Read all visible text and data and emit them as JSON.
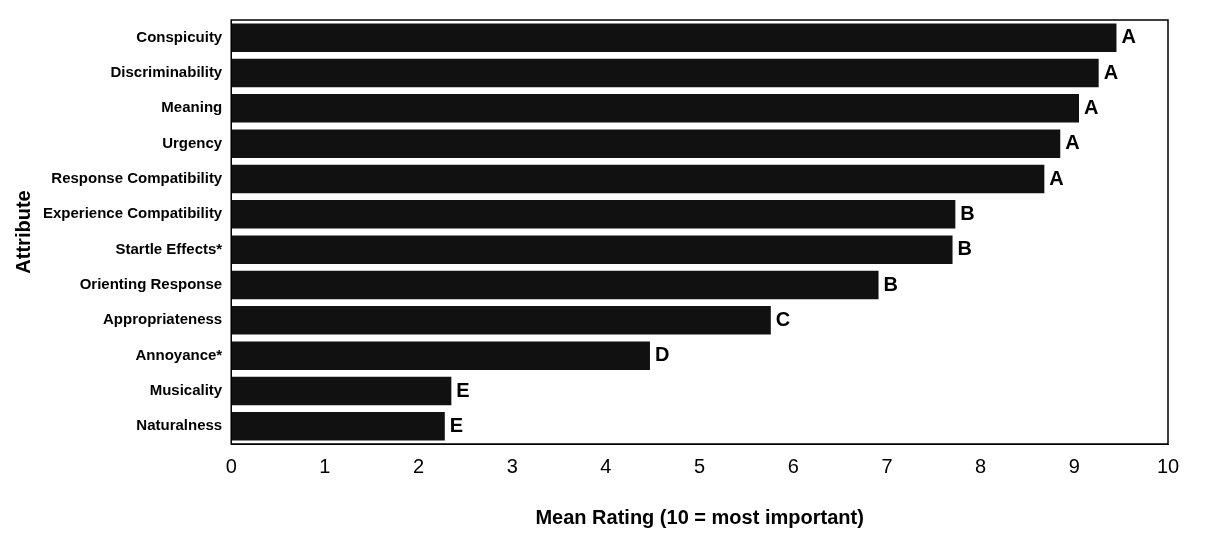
{
  "chart_data": {
    "type": "bar",
    "orientation": "horizontal",
    "xlabel": "Mean Rating (10 = most important)",
    "ylabel": "Attribute",
    "categories": [
      "Conspicuity",
      "Discriminability",
      "Meaning",
      "Urgency",
      "Response Compatibility",
      "Experience Compatibility",
      "Startle Effects*",
      "Orienting Response",
      "Appropriateness",
      "Annoyance*",
      "Musicality",
      "Naturalness"
    ],
    "values": [
      9.45,
      9.26,
      9.05,
      8.85,
      8.68,
      7.73,
      7.7,
      6.91,
      5.76,
      4.47,
      2.35,
      2.28
    ],
    "value_labels": [
      "A",
      "A",
      "A",
      "A",
      "A",
      "B",
      "B",
      "B",
      "C",
      "D",
      "E",
      "E"
    ],
    "color": "#111111",
    "xlim": [
      0,
      10
    ],
    "xticks": [
      0,
      1,
      2,
      3,
      4,
      5,
      6,
      7,
      8,
      9,
      10
    ],
    "grid": false,
    "legend": false
  }
}
